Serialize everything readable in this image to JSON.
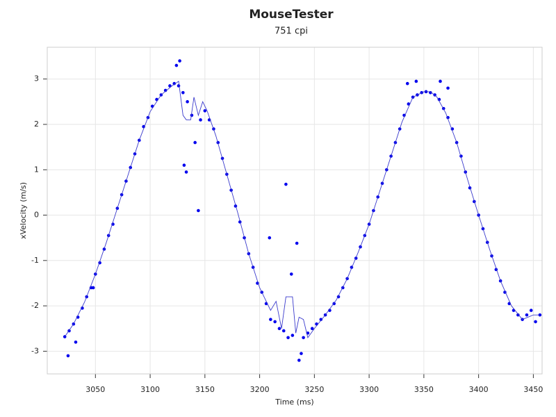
{
  "chart_data": {
    "type": "scatter",
    "title": "MouseTester",
    "subtitle": "751 cpi",
    "x_label": "Time (ms)",
    "y_label": "xVelocity (m/s)",
    "xlim": [
      3006,
      3458
    ],
    "ylim": [
      -3.5,
      3.7
    ],
    "xticks": [
      3050,
      3100,
      3150,
      3200,
      3250,
      3300,
      3350,
      3400,
      3450
    ],
    "yticks": [
      -3,
      -2,
      -1,
      0,
      1,
      2,
      3
    ],
    "grid": true,
    "series": [
      {
        "type": "scatter",
        "color": "#0000ee",
        "x": [
          3022,
          3026,
          3030,
          3034,
          3038,
          3042,
          3046,
          3050,
          3054,
          3058,
          3062,
          3066,
          3070,
          3074,
          3078,
          3082,
          3086,
          3090,
          3094,
          3098,
          3102,
          3106,
          3110,
          3114,
          3118,
          3122,
          3126,
          3130,
          3134,
          3138,
          3146,
          3150,
          3154,
          3158,
          3162,
          3166,
          3170,
          3174,
          3178,
          3182,
          3186,
          3190,
          3194,
          3198,
          3202,
          3206,
          3210,
          3214,
          3218,
          3222,
          3226,
          3230,
          3240,
          3244,
          3248,
          3252,
          3256,
          3260,
          3264,
          3268,
          3272,
          3276,
          3280,
          3284,
          3288,
          3292,
          3296,
          3300,
          3304,
          3308,
          3312,
          3316,
          3320,
          3324,
          3328,
          3332,
          3336,
          3340,
          3344,
          3348,
          3352,
          3356,
          3360,
          3364,
          3368,
          3372,
          3376,
          3380,
          3384,
          3388,
          3392,
          3396,
          3400,
          3404,
          3408,
          3412,
          3416,
          3420,
          3424,
          3428,
          3432,
          3436,
          3440,
          3444,
          3448,
          3452,
          3456,
          3127,
          3124,
          3131,
          3133,
          3141,
          3144,
          3209,
          3224,
          3229,
          3234,
          3236,
          3238,
          3025,
          3032,
          3048,
          3335,
          3343,
          3365,
          3372
        ],
        "values": [
          -2.68,
          -2.55,
          -2.4,
          -2.25,
          -2.05,
          -1.8,
          -1.6,
          -1.3,
          -1.05,
          -0.75,
          -0.45,
          -0.2,
          0.15,
          0.45,
          0.75,
          1.05,
          1.35,
          1.65,
          1.95,
          2.15,
          2.4,
          2.55,
          2.65,
          2.75,
          2.85,
          2.9,
          2.85,
          2.7,
          2.5,
          2.2,
          2.1,
          2.3,
          2.1,
          1.9,
          1.6,
          1.25,
          0.9,
          0.55,
          0.2,
          -0.15,
          -0.5,
          -0.85,
          -1.15,
          -1.5,
          -1.7,
          -1.95,
          -2.3,
          -2.35,
          -2.5,
          -2.55,
          -2.7,
          -2.65,
          -2.7,
          -2.6,
          -2.5,
          -2.4,
          -2.3,
          -2.2,
          -2.1,
          -1.95,
          -1.8,
          -1.6,
          -1.4,
          -1.15,
          -0.95,
          -0.7,
          -0.45,
          -0.2,
          0.1,
          0.4,
          0.7,
          1.0,
          1.3,
          1.6,
          1.9,
          2.2,
          2.45,
          2.6,
          2.65,
          2.7,
          2.72,
          2.7,
          2.65,
          2.55,
          2.35,
          2.15,
          1.9,
          1.6,
          1.3,
          0.95,
          0.6,
          0.3,
          0.0,
          -0.3,
          -0.6,
          -0.9,
          -1.2,
          -1.45,
          -1.7,
          -1.95,
          -2.1,
          -2.2,
          -2.3,
          -2.2,
          -2.1,
          -2.35,
          -2.2,
          3.4,
          3.3,
          1.1,
          0.95,
          1.6,
          0.1,
          -0.5,
          0.68,
          -1.3,
          -0.62,
          -3.2,
          -3.05,
          -3.1,
          -2.8,
          -1.6,
          2.9,
          2.95,
          2.95,
          2.8
        ]
      },
      {
        "type": "line",
        "color": "#3a3acc",
        "x": [
          3022,
          3030,
          3040,
          3050,
          3060,
          3070,
          3080,
          3090,
          3100,
          3110,
          3120,
          3126,
          3130,
          3133,
          3137,
          3140,
          3144,
          3148,
          3152,
          3160,
          3170,
          3180,
          3190,
          3200,
          3210,
          3215,
          3220,
          3224,
          3230,
          3233,
          3236,
          3240,
          3244,
          3250,
          3260,
          3270,
          3280,
          3290,
          3300,
          3310,
          3320,
          3330,
          3340,
          3350,
          3356,
          3362,
          3370,
          3380,
          3390,
          3400,
          3410,
          3420,
          3430,
          3440,
          3450,
          3456
        ],
        "values": [
          -2.68,
          -2.4,
          -1.92,
          -1.3,
          -0.6,
          0.15,
          0.9,
          1.65,
          2.28,
          2.65,
          2.85,
          2.95,
          2.2,
          2.1,
          2.1,
          2.6,
          2.2,
          2.5,
          2.3,
          1.75,
          0.9,
          0.05,
          -0.85,
          -1.6,
          -2.1,
          -1.9,
          -2.5,
          -1.8,
          -1.8,
          -2.6,
          -2.25,
          -2.3,
          -2.7,
          -2.5,
          -2.2,
          -1.87,
          -1.4,
          -0.82,
          -0.2,
          0.55,
          1.3,
          2.05,
          2.6,
          2.72,
          2.72,
          2.6,
          2.25,
          1.6,
          0.78,
          0.0,
          -0.75,
          -1.45,
          -2.0,
          -2.3,
          -2.2,
          -2.2
        ]
      }
    ]
  }
}
